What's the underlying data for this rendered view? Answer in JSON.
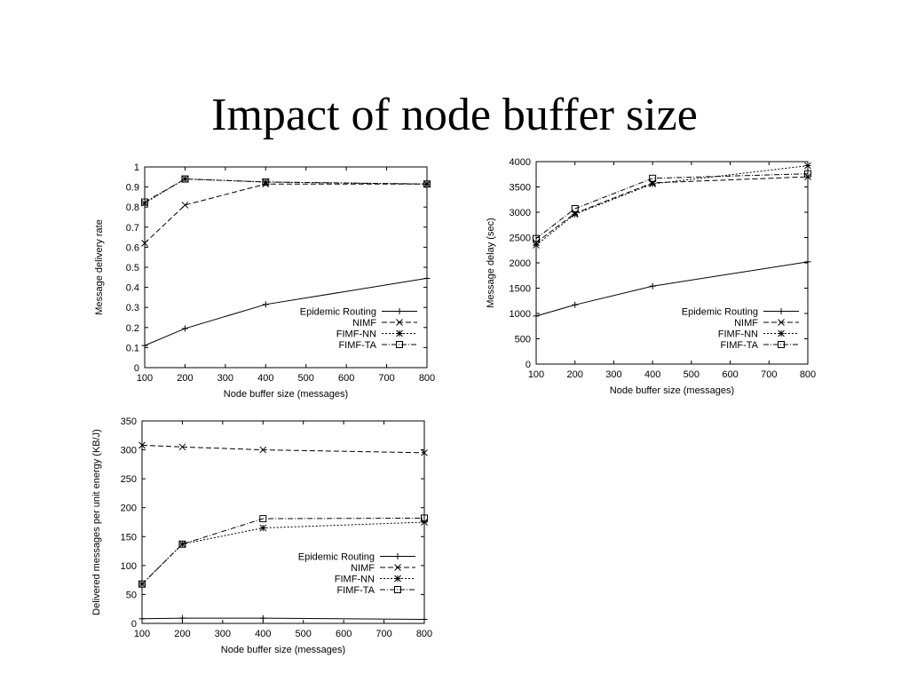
{
  "slide": {
    "title": "Impact of node buffer size"
  },
  "chart_data": [
    {
      "type": "line",
      "xlabel": "Node buffer size (messages)",
      "ylabel": "Message delivery rate",
      "xticks": [
        100,
        200,
        300,
        400,
        500,
        600,
        700,
        800
      ],
      "yticks": [
        "0",
        "0.1",
        "0.2",
        "0.3",
        "0.4",
        "0.5",
        "0.6",
        "0.7",
        "0.8",
        "0.9",
        "1"
      ],
      "xlim": [
        100,
        800
      ],
      "ylim": [
        0,
        1
      ],
      "legend_position": "lower-right",
      "grid": false,
      "series": [
        {
          "name": "Epidemic Routing",
          "marker": "plus",
          "dash": "solid",
          "x": [
            100,
            200,
            400,
            800
          ],
          "y": [
            0.11,
            0.195,
            0.315,
            0.445
          ]
        },
        {
          "name": "NIMF",
          "marker": "x",
          "dash": "dashed",
          "x": [
            100,
            200,
            400,
            800
          ],
          "y": [
            0.62,
            0.81,
            0.915,
            0.915
          ]
        },
        {
          "name": "FIMF-NN",
          "marker": "star",
          "dash": "dotted",
          "x": [
            100,
            200,
            400,
            800
          ],
          "y": [
            0.82,
            0.94,
            0.925,
            0.915
          ]
        },
        {
          "name": "FIMF-TA",
          "marker": "square",
          "dash": "dashdot",
          "x": [
            100,
            200,
            400,
            800
          ],
          "y": [
            0.825,
            0.94,
            0.925,
            0.915
          ]
        }
      ]
    },
    {
      "type": "line",
      "xlabel": "Node buffer size (messages)",
      "ylabel": "Message delay (sec)",
      "xticks": [
        100,
        200,
        300,
        400,
        500,
        600,
        700,
        800
      ],
      "yticks": [
        "0",
        "500",
        "1000",
        "1500",
        "2000",
        "2500",
        "3000",
        "3500",
        "4000"
      ],
      "xlim": [
        100,
        800
      ],
      "ylim": [
        0,
        4000
      ],
      "legend_position": "lower-right",
      "grid": false,
      "series": [
        {
          "name": "Epidemic Routing",
          "marker": "plus",
          "dash": "solid",
          "x": [
            100,
            200,
            400,
            800
          ],
          "y": [
            950,
            1170,
            1540,
            2020
          ]
        },
        {
          "name": "NIMF",
          "marker": "x",
          "dash": "dashed",
          "x": [
            100,
            200,
            400,
            800
          ],
          "y": [
            2400,
            2980,
            3580,
            3700
          ]
        },
        {
          "name": "FIMF-NN",
          "marker": "star",
          "dash": "dotted",
          "x": [
            100,
            200,
            400,
            800
          ],
          "y": [
            2350,
            2960,
            3560,
            3920
          ]
        },
        {
          "name": "FIMF-TA",
          "marker": "square",
          "dash": "dashdot",
          "x": [
            100,
            200,
            400,
            800
          ],
          "y": [
            2480,
            3070,
            3670,
            3760
          ]
        }
      ]
    },
    {
      "type": "line",
      "xlabel": "Node buffer size (messages)",
      "ylabel": "Delivered messages per unit energy (KB/J)",
      "xticks": [
        100,
        200,
        300,
        400,
        500,
        600,
        700,
        800
      ],
      "yticks": [
        "0",
        "50",
        "100",
        "150",
        "200",
        "250",
        "300",
        "350"
      ],
      "xlim": [
        100,
        800
      ],
      "ylim": [
        0,
        350
      ],
      "legend_position": "lower-right",
      "grid": false,
      "series": [
        {
          "name": "Epidemic Routing",
          "marker": "plus",
          "dash": "solid",
          "x": [
            100,
            200,
            400,
            800
          ],
          "y": [
            8,
            9,
            9,
            7
          ]
        },
        {
          "name": "NIMF",
          "marker": "x",
          "dash": "dashed",
          "x": [
            100,
            200,
            400,
            800
          ],
          "y": [
            308,
            305,
            300,
            295
          ]
        },
        {
          "name": "FIMF-NN",
          "marker": "star",
          "dash": "dotted",
          "x": [
            100,
            200,
            400,
            800
          ],
          "y": [
            68,
            137,
            165,
            175
          ]
        },
        {
          "name": "FIMF-TA",
          "marker": "square",
          "dash": "dashdot",
          "x": [
            100,
            200,
            400,
            800
          ],
          "y": [
            68,
            137,
            181,
            182
          ]
        }
      ]
    }
  ]
}
